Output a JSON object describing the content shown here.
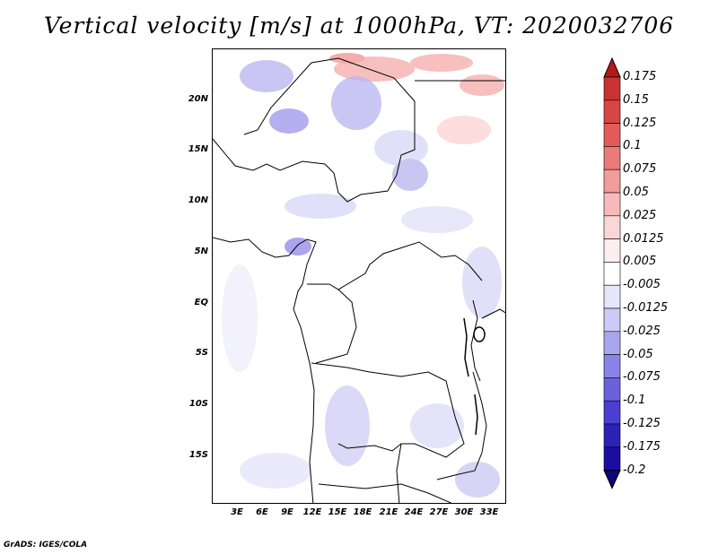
{
  "title": "Vertical velocity [m/s] at 1000hPa, VT: 2020032706",
  "credit": "GrADS: IGES/COLA",
  "lat_labels": [
    "20N",
    "15N",
    "10N",
    "5N",
    "EQ",
    "5S",
    "10S",
    "15S"
  ],
  "lon_labels": [
    "3E",
    "6E",
    "9E",
    "12E",
    "15E",
    "18E",
    "21E",
    "24E",
    "27E",
    "30E",
    "33E"
  ],
  "colorbar": {
    "labels": [
      "0.175",
      "0.15",
      "0.125",
      "0.1",
      "0.075",
      "0.05",
      "0.025",
      "0.0125",
      "0.005",
      "-0.005",
      "-0.0125",
      "-0.025",
      "-0.05",
      "-0.075",
      "-0.1",
      "-0.125",
      "-0.175",
      "-0.2"
    ],
    "colors": [
      "#b41a1a",
      "#c83232",
      "#d94444",
      "#e35a5a",
      "#eb7a7a",
      "#f29c9c",
      "#f7baba",
      "#fbd6d6",
      "#fdeeee",
      "#ffffff",
      "#e6e6fa",
      "#cbcbf5",
      "#a9a6ee",
      "#8a84e6",
      "#6a62dc",
      "#4a3fd0",
      "#2c22b8",
      "#1a0ea0",
      "#10047a"
    ]
  },
  "chart_data": {
    "type": "heatmap",
    "title": "Vertical velocity [m/s] at 1000hPa, VT: 2020032706",
    "xlim": [
      0,
      35
    ],
    "ylim": [
      -20,
      25
    ]
  }
}
